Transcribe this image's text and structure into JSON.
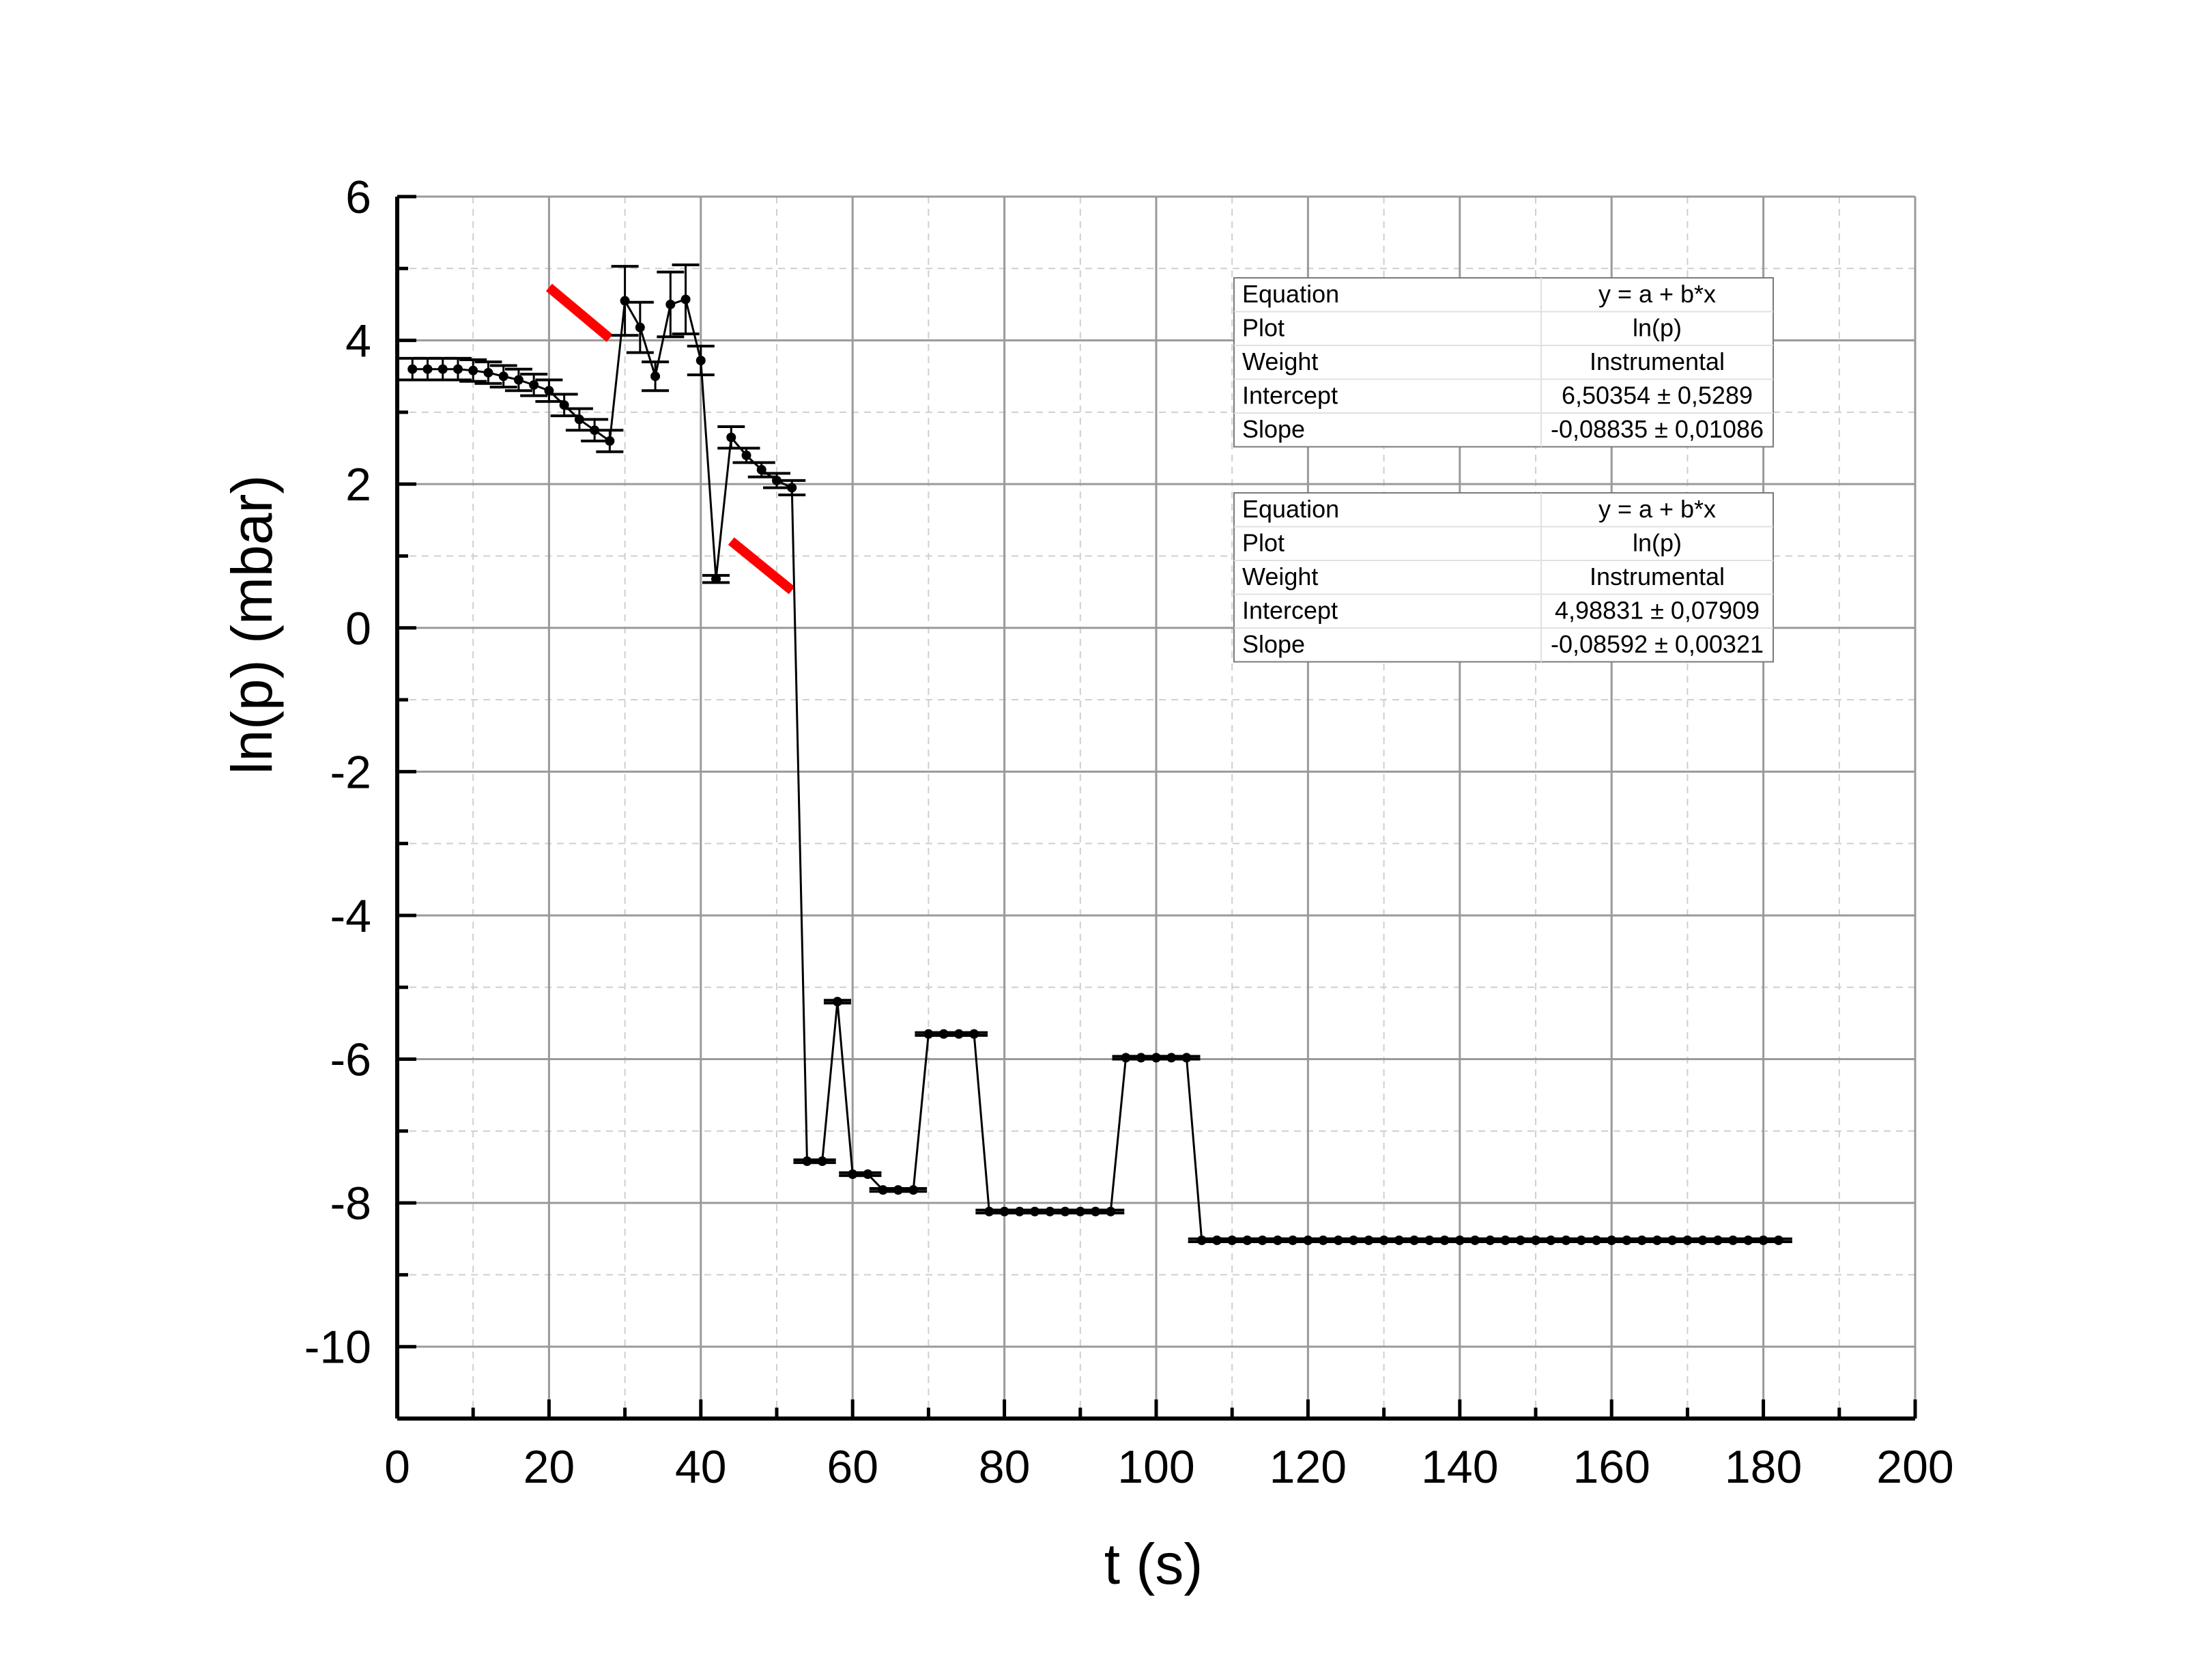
{
  "chart_data": {
    "type": "scatter",
    "title": "",
    "xlabel": "t (s)",
    "ylabel": "ln(p) (mbar)",
    "xlim": [
      0,
      200
    ],
    "ylim": [
      -11,
      6
    ],
    "x_ticks": [
      "0",
      "20",
      "40",
      "60",
      "80",
      "100",
      "120",
      "140",
      "160",
      "180",
      "200"
    ],
    "y_ticks": [
      "6",
      "4",
      "2",
      "0",
      "-2",
      "-4",
      "-6",
      "-8",
      "-10"
    ],
    "grid": true,
    "series": [
      {
        "x": [
          2,
          4,
          6,
          8,
          10,
          12,
          14,
          16,
          18,
          20,
          22,
          24,
          26,
          28,
          30,
          32,
          34,
          36,
          38,
          40,
          42,
          44,
          46,
          48,
          50,
          52,
          54,
          56,
          58,
          60,
          62,
          64,
          66,
          68,
          70,
          72,
          74,
          76,
          78,
          80,
          82,
          84,
          86,
          88,
          90,
          92,
          94,
          96,
          98,
          100,
          102,
          104,
          106,
          108,
          110,
          112,
          114,
          116,
          118,
          120,
          122,
          124,
          126,
          128,
          130,
          132,
          134,
          136,
          138,
          140,
          142,
          144,
          146,
          148,
          150,
          152,
          154,
          156,
          158,
          160,
          162,
          164,
          166,
          168,
          170,
          172,
          174,
          176,
          178,
          180,
          182
        ],
        "y": [
          3.6,
          3.6,
          3.6,
          3.6,
          3.58,
          3.55,
          3.5,
          3.45,
          3.38,
          3.3,
          3.1,
          2.9,
          2.75,
          2.6,
          4.55,
          4.18,
          3.5,
          4.5,
          4.57,
          3.72,
          0.68,
          2.65,
          2.4,
          2.2,
          2.05,
          1.95,
          -7.42,
          -7.42,
          -5.2,
          -7.6,
          -7.6,
          -7.82,
          -7.82,
          -7.82,
          -5.65,
          -5.65,
          -5.65,
          -5.65,
          -8.12,
          -8.12,
          -8.12,
          -8.12,
          -8.12,
          -8.12,
          -8.12,
          -8.12,
          -8.12,
          -5.98,
          -5.98,
          -5.98,
          -5.98,
          -5.98,
          -8.52,
          -8.52,
          -8.52,
          -8.52,
          -8.52,
          -8.52,
          -8.52,
          -8.52,
          -8.52,
          -8.52,
          -8.52,
          -8.52,
          -8.52,
          -8.52,
          -8.52,
          -8.52,
          -8.52,
          -8.52,
          -8.52,
          -8.52,
          -8.52,
          -8.52,
          -8.52,
          -8.52,
          -8.52,
          -8.52,
          -8.52,
          -8.52,
          -8.52,
          -8.52,
          -8.52,
          -8.52,
          -8.52,
          -8.52,
          -8.52,
          -8.52,
          -8.52,
          -8.52,
          -8.52
        ],
        "err": [
          0.15,
          0.15,
          0.15,
          0.15,
          0.15,
          0.15,
          0.15,
          0.15,
          0.15,
          0.15,
          0.15,
          0.15,
          0.15,
          0.15,
          0.48,
          0.35,
          0.2,
          0.45,
          0.48,
          0.2,
          0.05,
          0.15,
          0.1,
          0.1,
          0.1,
          0.1,
          0.02,
          0.02,
          0.02,
          0.02,
          0.02,
          0.02,
          0.02,
          0.02,
          0.02,
          0.02,
          0.02,
          0.02,
          0.02,
          0.02,
          0.02,
          0.02,
          0.02,
          0.02,
          0.02,
          0.02,
          0.02,
          0.02,
          0.02,
          0.02,
          0.02,
          0.02,
          0.02,
          0.02,
          0.02,
          0.02,
          0.02,
          0.02,
          0.02,
          0.02,
          0.02,
          0.02,
          0.02,
          0.02,
          0.02,
          0.02,
          0.02,
          0.02,
          0.02,
          0.02,
          0.02,
          0.02,
          0.02,
          0.02,
          0.02,
          0.02,
          0.02,
          0.02,
          0.02,
          0.02,
          0.02,
          0.02,
          0.02,
          0.02,
          0.02,
          0.02,
          0.02,
          0.02,
          0.02,
          0.02,
          0.02
        ],
        "color": "#000000"
      }
    ],
    "fits": [
      {
        "intercept": 6.50354,
        "slope": -0.08835,
        "x_range": [
          20,
          28
        ],
        "color": "#ff0000"
      },
      {
        "intercept": 4.98831,
        "slope": -0.08592,
        "x_range": [
          44,
          52
        ],
        "color": "#ff0000"
      }
    ],
    "fit_tables": [
      {
        "rows": [
          [
            "Equation",
            "y = a + b*x"
          ],
          [
            "Plot",
            "ln(p)"
          ],
          [
            "Weight",
            "Instrumental"
          ],
          [
            "Intercept",
            "6,50354 ± 0,5289"
          ],
          [
            "Slope",
            "-0,08835 ± 0,01086"
          ]
        ]
      },
      {
        "rows": [
          [
            "Equation",
            "y = a + b*x"
          ],
          [
            "Plot",
            "ln(p)"
          ],
          [
            "Weight",
            "Instrumental"
          ],
          [
            "Intercept",
            "4,98831 ± 0,07909"
          ],
          [
            "Slope",
            "-0,08592 ± 0,00321"
          ]
        ]
      }
    ]
  }
}
